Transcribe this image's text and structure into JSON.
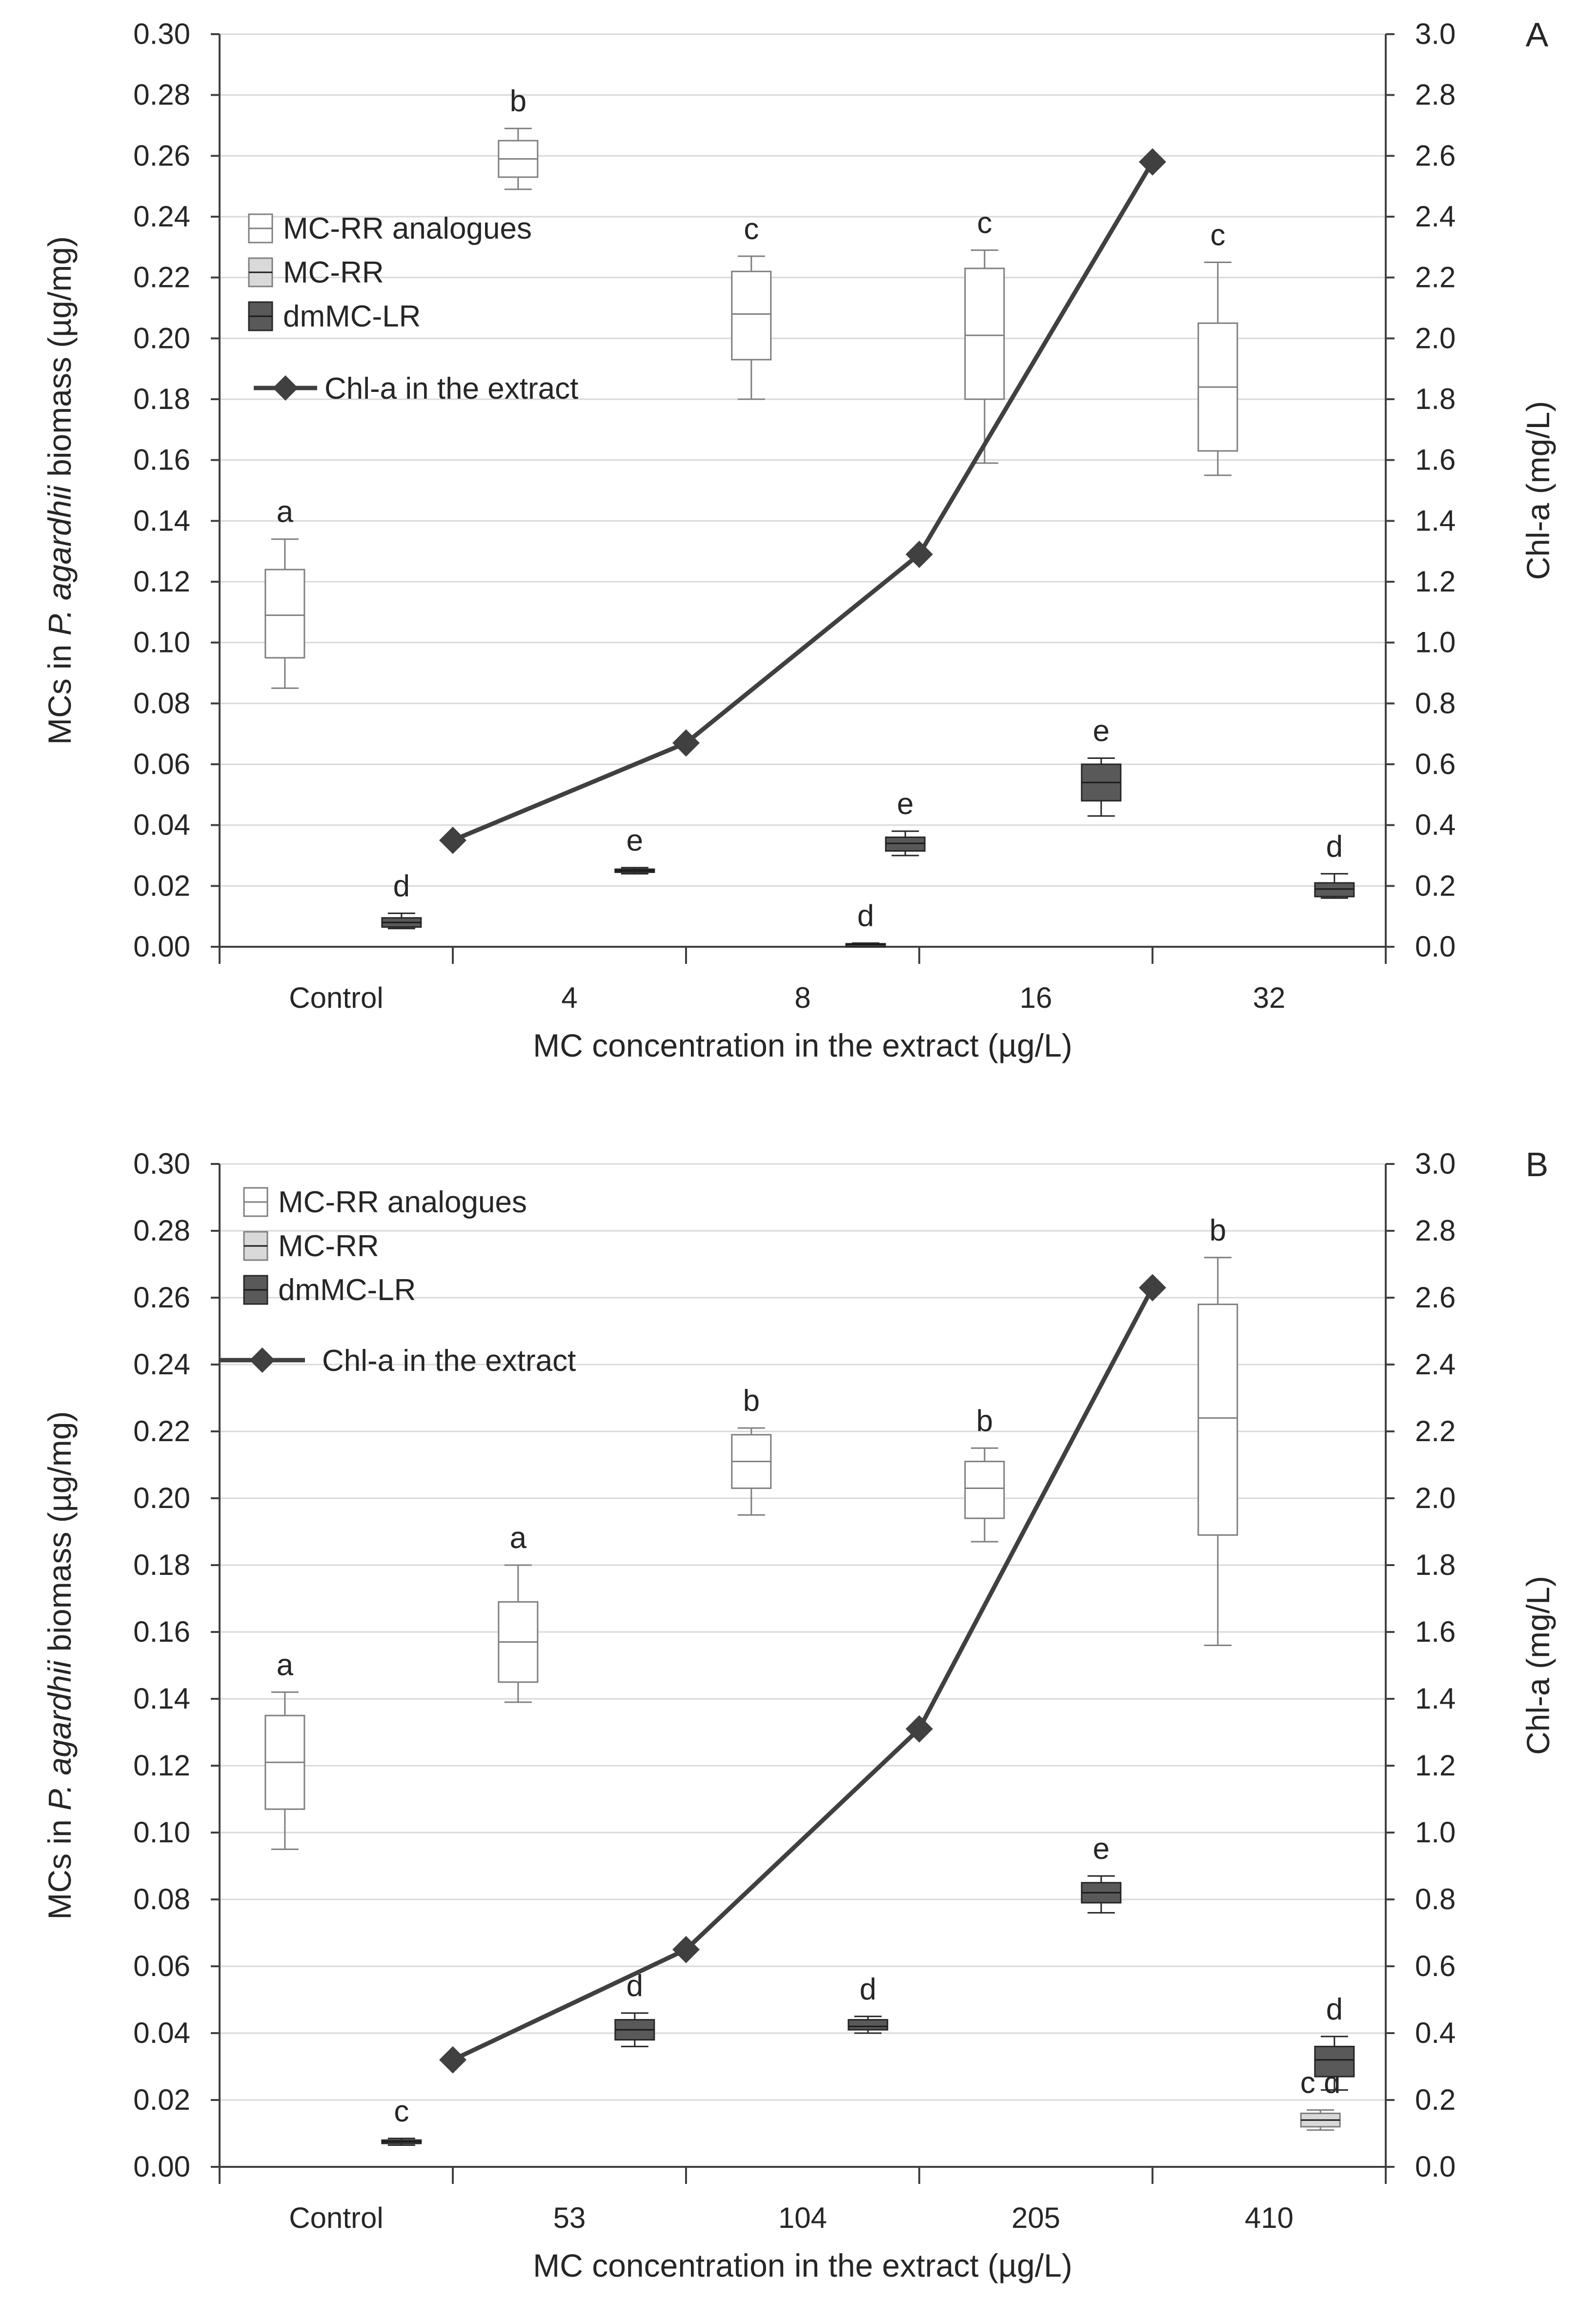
{
  "chart_data": [
    {
      "type": "box",
      "panel_label": "A",
      "xlabel": "MC concentration in the extract (µg/L)",
      "ylabel_prefix": "MCs in ",
      "ylabel_italic": "P. agardhii",
      "ylabel_suffix": " biomass (µg/mg)",
      "ylabel_right": "Chl-a (mg/L)",
      "categories": [
        "Control",
        "4",
        "8",
        "16",
        "32"
      ],
      "ylim": [
        0,
        0.3
      ],
      "ylim_right": [
        0,
        3.0
      ],
      "yticks": [
        "0.00",
        "0.02",
        "0.04",
        "0.06",
        "0.08",
        "0.10",
        "0.12",
        "0.14",
        "0.16",
        "0.18",
        "0.20",
        "0.22",
        "0.24",
        "0.26",
        "0.28",
        "0.30"
      ],
      "yticks_right": [
        "0.0",
        "0.2",
        "0.4",
        "0.6",
        "0.8",
        "1.0",
        "1.2",
        "1.4",
        "1.6",
        "1.8",
        "2.0",
        "2.2",
        "2.4",
        "2.6",
        "2.8",
        "3.0"
      ],
      "legend": {
        "placement": "top-left",
        "items": [
          {
            "name": "MC-RR analogues",
            "swatch": "open"
          },
          {
            "name": "MC-RR",
            "swatch": "light"
          },
          {
            "name": "dmMC-LR",
            "swatch": "dark"
          },
          {
            "name": "Chl-a in the extract",
            "swatch": "line"
          }
        ]
      },
      "series": [
        {
          "name": "MC-RR analogues",
          "style": "open",
          "boxes": [
            {
              "category": "Control",
              "min": 0.085,
              "q1": 0.095,
              "median": 0.109,
              "q3": 0.124,
              "max": 0.134,
              "letter": "a"
            },
            {
              "category": "4",
              "min": 0.249,
              "q1": 0.253,
              "median": 0.259,
              "q3": 0.265,
              "max": 0.269,
              "letter": "b"
            },
            {
              "category": "8",
              "min": 0.18,
              "q1": 0.193,
              "median": 0.208,
              "q3": 0.222,
              "max": 0.227,
              "letter": "c"
            },
            {
              "category": "16",
              "min": 0.159,
              "q1": 0.18,
              "median": 0.201,
              "q3": 0.223,
              "max": 0.229,
              "letter": "c"
            },
            {
              "category": "32",
              "min": 0.155,
              "q1": 0.163,
              "median": 0.184,
              "q3": 0.205,
              "max": 0.225,
              "letter": "c"
            }
          ]
        },
        {
          "name": "dmMC-LR",
          "style": "dark",
          "boxes": [
            {
              "category": "Control",
              "min": 0.006,
              "q1": 0.0065,
              "median": 0.008,
              "q3": 0.0095,
              "max": 0.011,
              "letter": "d"
            },
            {
              "category": "4",
              "min": 0.024,
              "q1": 0.0245,
              "median": 0.025,
              "q3": 0.0255,
              "max": 0.026,
              "letter": "e"
            },
            {
              "category": "8",
              "min": 0.0,
              "q1": 0.0005,
              "median": 0.0007,
              "q3": 0.001,
              "max": 0.0012,
              "letter": "d"
            },
            {
              "category": "8",
              "min": 0.03,
              "q1": 0.0315,
              "median": 0.034,
              "q3": 0.036,
              "max": 0.038,
              "letter": "e"
            },
            {
              "category": "16",
              "min": 0.043,
              "q1": 0.048,
              "median": 0.054,
              "q3": 0.06,
              "max": 0.062,
              "letter": "e"
            },
            {
              "category": "32",
              "min": 0.016,
              "q1": 0.0165,
              "median": 0.019,
              "q3": 0.021,
              "max": 0.024,
              "letter": "d"
            }
          ]
        }
      ],
      "chl_a": {
        "name": "Chl-a in the extract",
        "x": [
          "4",
          "8",
          "16",
          "32"
        ],
        "values": [
          0.35,
          0.67,
          1.29,
          2.58
        ]
      }
    },
    {
      "type": "box",
      "panel_label": "B",
      "xlabel": "MC concentration in the extract (µg/L)",
      "ylabel_prefix": "MCs in ",
      "ylabel_italic": "P. agardhii",
      "ylabel_suffix": " biomass (µg/mg)",
      "ylabel_right": "Chl-a (mg/L)",
      "categories": [
        "Control",
        "53",
        "104",
        "205",
        "410"
      ],
      "ylim": [
        0,
        0.3
      ],
      "ylim_right": [
        0,
        3.0
      ],
      "yticks": [
        "0.00",
        "0.02",
        "0.04",
        "0.06",
        "0.08",
        "0.10",
        "0.12",
        "0.14",
        "0.16",
        "0.18",
        "0.20",
        "0.22",
        "0.24",
        "0.26",
        "0.28",
        "0.30"
      ],
      "yticks_right": [
        "0.0",
        "0.2",
        "0.4",
        "0.6",
        "0.8",
        "1.0",
        "1.2",
        "1.4",
        "1.6",
        "1.8",
        "2.0",
        "2.2",
        "2.4",
        "2.6",
        "2.8",
        "3.0"
      ],
      "legend": {
        "placement": "top-left",
        "items": [
          {
            "name": "MC-RR analogues",
            "swatch": "open"
          },
          {
            "name": "MC-RR",
            "swatch": "light"
          },
          {
            "name": "dmMC-LR",
            "swatch": "dark"
          },
          {
            "name": "Chl-a in the extract",
            "swatch": "line"
          }
        ]
      },
      "series": [
        {
          "name": "MC-RR analogues",
          "style": "open",
          "boxes": [
            {
              "category": "Control",
              "min": 0.095,
              "q1": 0.107,
              "median": 0.121,
              "q3": 0.135,
              "max": 0.142,
              "letter": "a"
            },
            {
              "category": "53",
              "min": 0.139,
              "q1": 0.145,
              "median": 0.157,
              "q3": 0.169,
              "max": 0.18,
              "letter": "a"
            },
            {
              "category": "104",
              "min": 0.195,
              "q1": 0.203,
              "median": 0.211,
              "q3": 0.219,
              "max": 0.221,
              "letter": "b"
            },
            {
              "category": "205",
              "min": 0.187,
              "q1": 0.194,
              "median": 0.203,
              "q3": 0.211,
              "max": 0.215,
              "letter": "b"
            },
            {
              "category": "410",
              "min": 0.156,
              "q1": 0.189,
              "median": 0.224,
              "q3": 0.258,
              "max": 0.272,
              "letter": "b"
            }
          ]
        },
        {
          "name": "MC-RR",
          "style": "light",
          "boxes": [
            {
              "category": "410",
              "min": 0.011,
              "q1": 0.012,
              "median": 0.014,
              "q3": 0.016,
              "max": 0.017,
              "letter": "c d"
            }
          ]
        },
        {
          "name": "dmMC-LR",
          "style": "dark",
          "boxes": [
            {
              "category": "Control",
              "min": 0.0065,
              "q1": 0.007,
              "median": 0.0075,
              "q3": 0.008,
              "max": 0.0085,
              "letter": "c"
            },
            {
              "category": "53",
              "min": 0.036,
              "q1": 0.038,
              "median": 0.041,
              "q3": 0.044,
              "max": 0.046,
              "letter": "d"
            },
            {
              "category": "104",
              "min": 0.04,
              "q1": 0.041,
              "median": 0.042,
              "q3": 0.044,
              "max": 0.045,
              "letter": "d"
            },
            {
              "category": "205",
              "min": 0.076,
              "q1": 0.079,
              "median": 0.082,
              "q3": 0.085,
              "max": 0.087,
              "letter": "e"
            },
            {
              "category": "410",
              "min": 0.023,
              "q1": 0.027,
              "median": 0.032,
              "q3": 0.036,
              "max": 0.039,
              "letter": "d"
            }
          ]
        }
      ],
      "chl_a": {
        "name": "Chl-a in the extract",
        "x": [
          "53",
          "104",
          "205",
          "410"
        ],
        "values": [
          0.32,
          0.65,
          1.31,
          2.63
        ]
      }
    }
  ]
}
